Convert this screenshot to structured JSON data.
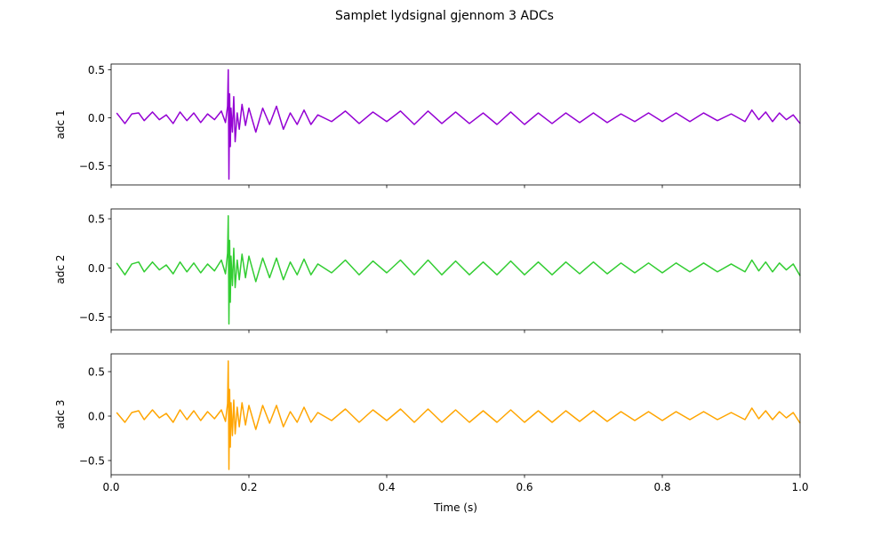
{
  "chart_data": {
    "type": "line",
    "title": "Samplet lydsignal gjennom 3 ADCs",
    "xlabel": "Time (s)",
    "xlim": [
      0.0,
      1.0
    ],
    "x_ticks": [
      0.0,
      0.2,
      0.4,
      0.6,
      0.8,
      1.0
    ],
    "x_tick_labels": [
      "0.0",
      "0.2",
      "0.4",
      "0.6",
      "0.8",
      "1.0"
    ],
    "shared_x": true,
    "grid": false,
    "subplots": [
      {
        "ylabel": "adc 1",
        "ylim": [
          -0.7,
          0.56
        ],
        "y_ticks": [
          -0.5,
          0.0,
          0.5
        ],
        "y_tick_labels": [
          "−0.5",
          "0.0",
          "0.5"
        ],
        "color": "#9400D3",
        "series": [
          {
            "x": [
              0.008,
              0.02,
              0.03,
              0.04,
              0.048,
              0.06,
              0.07,
              0.08,
              0.09,
              0.1,
              0.11,
              0.12,
              0.13,
              0.14,
              0.15,
              0.16,
              0.166,
              0.169,
              0.17,
              0.171,
              0.172,
              0.173,
              0.174,
              0.176,
              0.178,
              0.18,
              0.183,
              0.186,
              0.19,
              0.195,
              0.2,
              0.21,
              0.22,
              0.23,
              0.24,
              0.25,
              0.26,
              0.27,
              0.28,
              0.29,
              0.3,
              0.32,
              0.34,
              0.36,
              0.38,
              0.4,
              0.42,
              0.44,
              0.46,
              0.48,
              0.5,
              0.52,
              0.54,
              0.56,
              0.58,
              0.6,
              0.62,
              0.64,
              0.66,
              0.68,
              0.7,
              0.72,
              0.74,
              0.76,
              0.78,
              0.8,
              0.82,
              0.84,
              0.86,
              0.88,
              0.9,
              0.92,
              0.93,
              0.94,
              0.95,
              0.96,
              0.97,
              0.98,
              0.99,
              1.0
            ],
            "y": [
              0.05,
              -0.06,
              0.04,
              0.05,
              -0.03,
              0.06,
              -0.02,
              0.03,
              -0.06,
              0.06,
              -0.03,
              0.05,
              -0.05,
              0.04,
              -0.02,
              0.07,
              -0.05,
              0.12,
              0.5,
              -0.64,
              0.25,
              -0.3,
              0.1,
              -0.15,
              0.22,
              -0.25,
              0.05,
              -0.12,
              0.14,
              -0.08,
              0.1,
              -0.15,
              0.1,
              -0.07,
              0.12,
              -0.12,
              0.05,
              -0.07,
              0.08,
              -0.07,
              0.03,
              -0.04,
              0.07,
              -0.06,
              0.06,
              -0.04,
              0.07,
              -0.07,
              0.07,
              -0.06,
              0.06,
              -0.06,
              0.05,
              -0.07,
              0.06,
              -0.07,
              0.05,
              -0.06,
              0.05,
              -0.05,
              0.05,
              -0.05,
              0.04,
              -0.04,
              0.05,
              -0.04,
              0.05,
              -0.04,
              0.05,
              -0.03,
              0.04,
              -0.04,
              0.08,
              -0.02,
              0.06,
              -0.04,
              0.05,
              -0.02,
              0.03,
              -0.06
            ]
          }
        ]
      },
      {
        "ylabel": "adc 2",
        "ylim": [
          -0.63,
          0.6
        ],
        "y_ticks": [
          -0.5,
          0.0,
          0.5
        ],
        "y_tick_labels": [
          "−0.5",
          "0.0",
          "0.5"
        ],
        "color": "#32CD32",
        "series": [
          {
            "x": [
              0.008,
              0.02,
              0.03,
              0.04,
              0.048,
              0.06,
              0.07,
              0.08,
              0.09,
              0.1,
              0.11,
              0.12,
              0.13,
              0.14,
              0.15,
              0.16,
              0.166,
              0.169,
              0.17,
              0.171,
              0.172,
              0.173,
              0.174,
              0.176,
              0.178,
              0.18,
              0.183,
              0.186,
              0.19,
              0.195,
              0.2,
              0.21,
              0.22,
              0.23,
              0.24,
              0.25,
              0.26,
              0.27,
              0.28,
              0.29,
              0.3,
              0.32,
              0.34,
              0.36,
              0.38,
              0.4,
              0.42,
              0.44,
              0.46,
              0.48,
              0.5,
              0.52,
              0.54,
              0.56,
              0.58,
              0.6,
              0.62,
              0.64,
              0.66,
              0.68,
              0.7,
              0.72,
              0.74,
              0.76,
              0.78,
              0.8,
              0.82,
              0.84,
              0.86,
              0.88,
              0.9,
              0.92,
              0.93,
              0.94,
              0.95,
              0.96,
              0.97,
              0.98,
              0.99,
              1.0
            ],
            "y": [
              0.05,
              -0.07,
              0.04,
              0.06,
              -0.04,
              0.06,
              -0.02,
              0.03,
              -0.06,
              0.06,
              -0.04,
              0.05,
              -0.05,
              0.04,
              -0.03,
              0.08,
              -0.06,
              0.15,
              0.53,
              -0.57,
              0.28,
              -0.35,
              0.12,
              -0.18,
              0.2,
              -0.2,
              0.08,
              -0.12,
              0.14,
              -0.1,
              0.12,
              -0.14,
              0.1,
              -0.1,
              0.1,
              -0.12,
              0.06,
              -0.07,
              0.09,
              -0.07,
              0.04,
              -0.05,
              0.08,
              -0.07,
              0.07,
              -0.05,
              0.08,
              -0.07,
              0.08,
              -0.07,
              0.07,
              -0.07,
              0.06,
              -0.07,
              0.07,
              -0.07,
              0.06,
              -0.07,
              0.06,
              -0.06,
              0.06,
              -0.06,
              0.05,
              -0.05,
              0.05,
              -0.05,
              0.05,
              -0.04,
              0.05,
              -0.04,
              0.04,
              -0.04,
              0.08,
              -0.03,
              0.06,
              -0.04,
              0.05,
              -0.02,
              0.04,
              -0.08
            ]
          }
        ]
      },
      {
        "ylabel": "adc 3",
        "ylim": [
          -0.66,
          0.7
        ],
        "y_ticks": [
          -0.5,
          0.0,
          0.5
        ],
        "y_tick_labels": [
          "−0.5",
          "0.0",
          "0.5"
        ],
        "color": "#FFA500",
        "series": [
          {
            "x": [
              0.008,
              0.02,
              0.03,
              0.04,
              0.048,
              0.06,
              0.07,
              0.08,
              0.09,
              0.1,
              0.11,
              0.12,
              0.13,
              0.14,
              0.15,
              0.16,
              0.166,
              0.169,
              0.17,
              0.171,
              0.172,
              0.173,
              0.174,
              0.176,
              0.178,
              0.18,
              0.183,
              0.186,
              0.19,
              0.195,
              0.2,
              0.21,
              0.22,
              0.23,
              0.24,
              0.25,
              0.26,
              0.27,
              0.28,
              0.29,
              0.3,
              0.32,
              0.34,
              0.36,
              0.38,
              0.4,
              0.42,
              0.44,
              0.46,
              0.48,
              0.5,
              0.52,
              0.54,
              0.56,
              0.58,
              0.6,
              0.62,
              0.64,
              0.66,
              0.68,
              0.7,
              0.72,
              0.74,
              0.76,
              0.78,
              0.8,
              0.82,
              0.84,
              0.86,
              0.88,
              0.9,
              0.92,
              0.93,
              0.94,
              0.95,
              0.96,
              0.97,
              0.98,
              0.99,
              1.0
            ],
            "y": [
              0.04,
              -0.07,
              0.04,
              0.06,
              -0.04,
              0.07,
              -0.02,
              0.03,
              -0.07,
              0.07,
              -0.04,
              0.06,
              -0.05,
              0.05,
              -0.03,
              0.07,
              -0.06,
              0.14,
              0.62,
              -0.6,
              0.3,
              -0.35,
              0.15,
              -0.22,
              0.18,
              -0.2,
              0.1,
              -0.12,
              0.15,
              -0.1,
              0.12,
              -0.15,
              0.12,
              -0.08,
              0.12,
              -0.12,
              0.05,
              -0.07,
              0.1,
              -0.07,
              0.04,
              -0.05,
              0.08,
              -0.07,
              0.07,
              -0.05,
              0.08,
              -0.07,
              0.08,
              -0.07,
              0.07,
              -0.07,
              0.06,
              -0.07,
              0.07,
              -0.07,
              0.06,
              -0.07,
              0.06,
              -0.06,
              0.06,
              -0.06,
              0.05,
              -0.05,
              0.05,
              -0.05,
              0.05,
              -0.04,
              0.05,
              -0.04,
              0.04,
              -0.04,
              0.09,
              -0.03,
              0.06,
              -0.04,
              0.05,
              -0.02,
              0.04,
              -0.08
            ]
          }
        ]
      }
    ]
  }
}
